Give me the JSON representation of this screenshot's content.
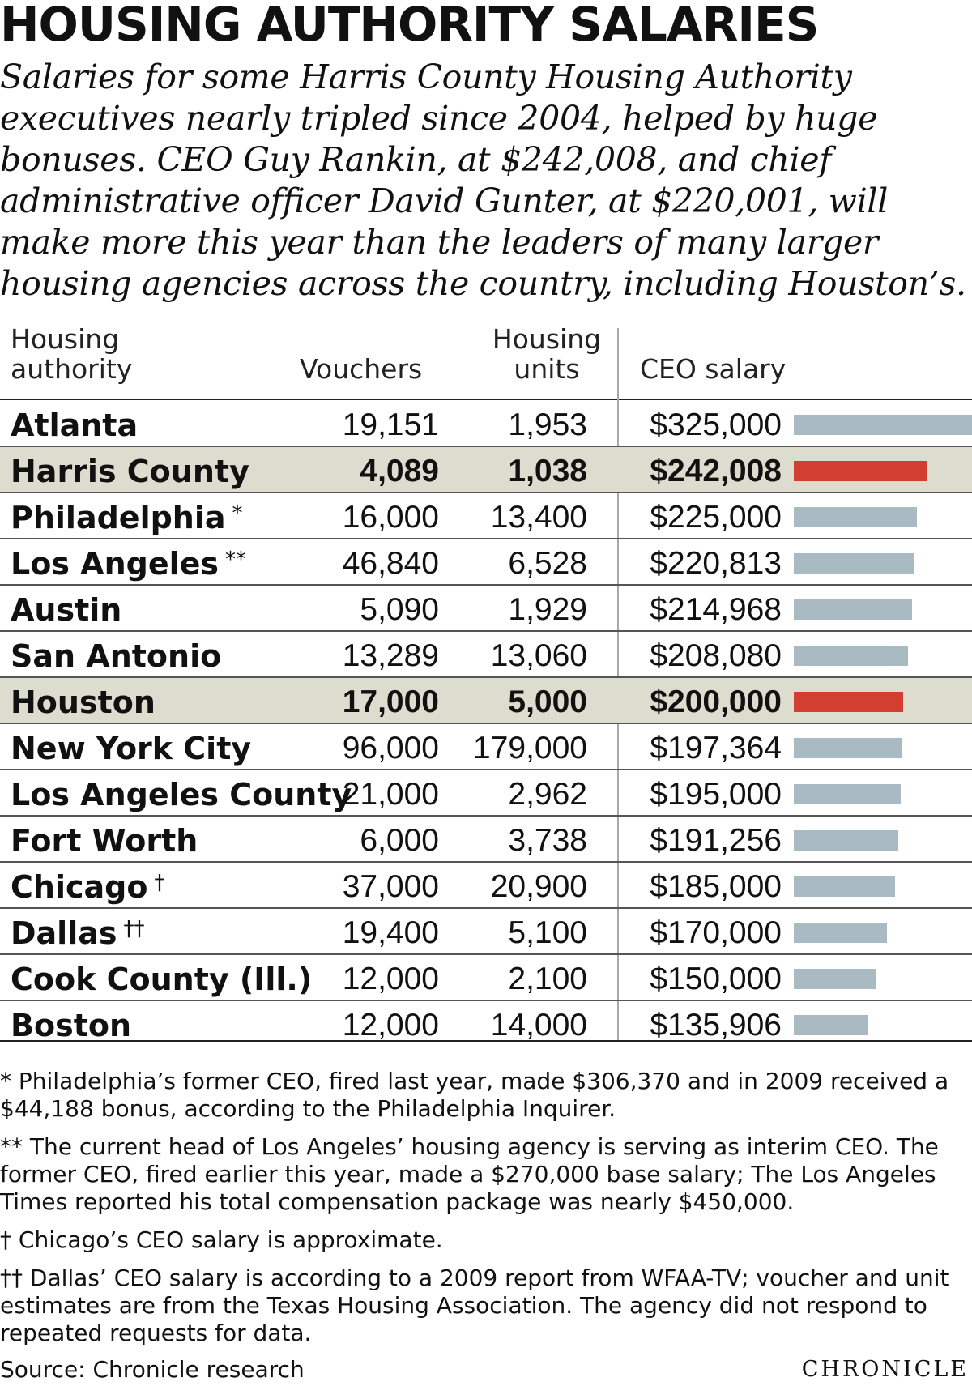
{
  "title": "HOUSING AUTHORITY SALARIES",
  "chatter": "Salaries for some Harris County Housing Authority executives nearly tripled since 2004, helped by huge bonuses. CEO Guy Rankin, at $242,008, and chief administrative officer David Gunter, at $220,001, will make more this year than the leaders of many larger housing agencies across the country, including Houston’s.",
  "headers": {
    "authority_line1": "Housing",
    "authority_line2": "authority",
    "vouchers": "Vouchers",
    "units_line1": "Housing",
    "units_line2": "units",
    "salary": "CEO salary"
  },
  "chart_data": {
    "type": "table",
    "columns": [
      "Housing authority",
      "Vouchers",
      "Housing units",
      "CEO salary"
    ],
    "salary_scale_max": 325000,
    "highlight_color": "#d23f30",
    "bar_color": "#a9bac3",
    "rows": [
      {
        "name": "Atlanta",
        "note": "",
        "vouchers": "19,151",
        "units": "1,953",
        "salary": "$325,000",
        "salary_value": 325000,
        "highlight": false
      },
      {
        "name": "Harris County",
        "note": "",
        "vouchers": "4,089",
        "units": "1,038",
        "salary": "$242,008",
        "salary_value": 242008,
        "highlight": true
      },
      {
        "name": "Philadelphia",
        "note": "*",
        "vouchers": "16,000",
        "units": "13,400",
        "salary": "$225,000",
        "salary_value": 225000,
        "highlight": false
      },
      {
        "name": "Los Angeles",
        "note": "**",
        "vouchers": "46,840",
        "units": "6,528",
        "salary": "$220,813",
        "salary_value": 220813,
        "highlight": false
      },
      {
        "name": "Austin",
        "note": "",
        "vouchers": "5,090",
        "units": "1,929",
        "salary": "$214,968",
        "salary_value": 214968,
        "highlight": false
      },
      {
        "name": "San Antonio",
        "note": "",
        "vouchers": "13,289",
        "units": "13,060",
        "salary": "$208,080",
        "salary_value": 208080,
        "highlight": false
      },
      {
        "name": "Houston",
        "note": "",
        "vouchers": "17,000",
        "units": "5,000",
        "salary": "$200,000",
        "salary_value": 200000,
        "highlight": true
      },
      {
        "name": "New York City",
        "note": "",
        "vouchers": "96,000",
        "units": "179,000",
        "salary": "$197,364",
        "salary_value": 197364,
        "highlight": false
      },
      {
        "name": "Los Angeles County",
        "note": "",
        "vouchers": "21,000",
        "units": "2,962",
        "salary": "$195,000",
        "salary_value": 195000,
        "highlight": false
      },
      {
        "name": "Fort Worth",
        "note": "",
        "vouchers": "6,000",
        "units": "3,738",
        "salary": "$191,256",
        "salary_value": 191256,
        "highlight": false
      },
      {
        "name": "Chicago",
        "note": "†",
        "vouchers": "37,000",
        "units": "20,900",
        "salary": "$185,000",
        "salary_value": 185000,
        "highlight": false
      },
      {
        "name": "Dallas",
        "note": "††",
        "vouchers": "19,400",
        "units": "5,100",
        "salary": "$170,000",
        "salary_value": 170000,
        "highlight": false
      },
      {
        "name": "Cook County (Ill.)",
        "note": "",
        "vouchers": "12,000",
        "units": "2,100",
        "salary": "$150,000",
        "salary_value": 150000,
        "highlight": false
      },
      {
        "name": "Boston",
        "note": "",
        "vouchers": "12,000",
        "units": "14,000",
        "salary": "$135,906",
        "salary_value": 135906,
        "highlight": false
      }
    ]
  },
  "footnotes": [
    "* Philadelphia’s former CEO, fired last year, made $306,370 and in 2009 received a $44,188 bonus, according to the Philadelphia Inquirer.",
    "** The current head of Los Angeles’ housing agency is serving as interim CEO. The former CEO, fired earlier this year, made a $270,000 base salary; The Los Angeles Times reported his total compensation package was nearly $450,000.",
    "† Chicago’s CEO salary is approximate.",
    "†† Dallas’ CEO salary is according to a 2009 report from WFAA-TV; voucher and unit estimates are from the Texas Housing Association. The agency did not respond to repeated requests for data."
  ],
  "source": "Source: Chronicle research",
  "credit": "CHRONICLE"
}
